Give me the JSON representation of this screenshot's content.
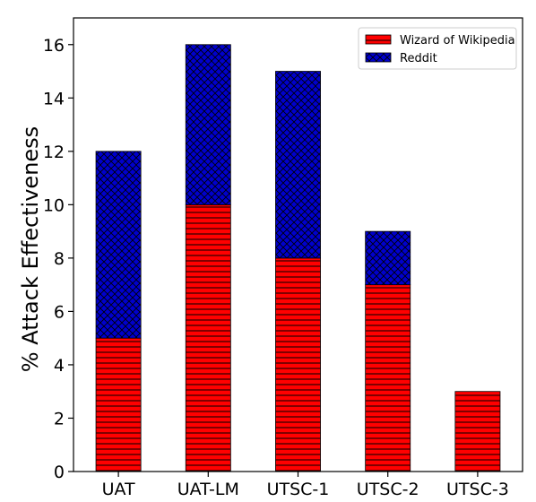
{
  "chart_data": {
    "type": "bar",
    "stacked": true,
    "categories": [
      "UAT",
      "UAT-LM",
      "UTSC-1",
      "UTSC-2",
      "UTSC-3"
    ],
    "series": [
      {
        "name": "Wizard of Wikipedia",
        "values": [
          5,
          10,
          8,
          7,
          3
        ],
        "color": "#ff0000",
        "hatch": "horizontal"
      },
      {
        "name": "Reddit",
        "values": [
          7,
          6,
          7,
          2,
          0
        ],
        "color": "#0000cc",
        "hatch": "cross"
      }
    ],
    "xlabel": "",
    "ylabel": "% Attack Effectiveness",
    "ylim": [
      0,
      17
    ],
    "yticks": [
      0,
      2,
      4,
      6,
      8,
      10,
      12,
      14,
      16
    ],
    "grid": false,
    "legend_position": "top-right"
  }
}
